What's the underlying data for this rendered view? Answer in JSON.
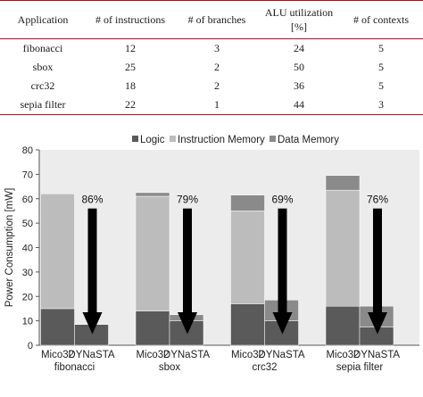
{
  "table": {
    "headers": [
      "Application",
      "# of instructions",
      "# of branches",
      "ALU utilization\n[%]",
      "# of contexts"
    ],
    "rows": [
      [
        "fibonacci",
        "12",
        "3",
        "24",
        "5"
      ],
      [
        "sbox",
        "25",
        "2",
        "50",
        "5"
      ],
      [
        "crc32",
        "18",
        "2",
        "36",
        "5"
      ],
      [
        "sepia filter",
        "22",
        "1",
        "44",
        "3"
      ]
    ]
  },
  "chart_data": {
    "type": "bar",
    "stacked": true,
    "ylabel": "Power Consumption [mW]",
    "ylim": [
      0,
      80
    ],
    "yticks": [
      0,
      10,
      20,
      30,
      40,
      50,
      60,
      70,
      80
    ],
    "grid": false,
    "legend": {
      "placement": "top",
      "entries": [
        "Logic",
        "Instruction Memory",
        "Data Memory"
      ]
    },
    "colors": {
      "Logic": "#5a5a5a",
      "Instruction Memory": "#bcbcbc",
      "Data Memory": "#8a8a8a",
      "plot_bg": "#ececec",
      "arrow": "#000000"
    },
    "groups": [
      {
        "name": "fibonacci",
        "bars": [
          {
            "label": "Mico32",
            "Logic": 15,
            "Instruction Memory": 47,
            "Data Memory": 0
          },
          {
            "label": "DYNaSTA",
            "Logic": 8.5,
            "Instruction Memory": 0,
            "Data Memory": 0
          }
        ],
        "reduction": "86%"
      },
      {
        "name": "sbox",
        "bars": [
          {
            "label": "Mico32",
            "Logic": 14,
            "Instruction Memory": 47,
            "Data Memory": 1.5
          },
          {
            "label": "DYNaSTA",
            "Logic": 10,
            "Instruction Memory": 0,
            "Data Memory": 2.5
          }
        ],
        "reduction": "79%"
      },
      {
        "name": "crc32",
        "bars": [
          {
            "label": "Mico32",
            "Logic": 17,
            "Instruction Memory": 38,
            "Data Memory": 6.5
          },
          {
            "label": "DYNaSTA",
            "Logic": 10,
            "Instruction Memory": 0,
            "Data Memory": 8.5
          }
        ],
        "reduction": "69%"
      },
      {
        "name": "sepia filter",
        "bars": [
          {
            "label": "Mico32",
            "Logic": 16,
            "Instruction Memory": 47.5,
            "Data Memory": 6
          },
          {
            "label": "DYNaSTA",
            "Logic": 7.5,
            "Instruction Memory": 0,
            "Data Memory": 8.5
          }
        ],
        "reduction": "76%"
      }
    ]
  }
}
